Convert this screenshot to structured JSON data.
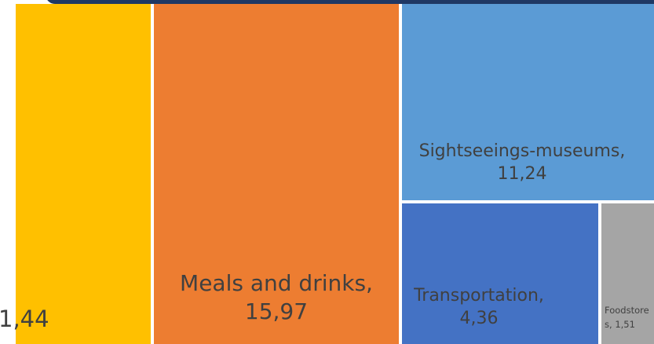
{
  "chart_data": {
    "type": "treemap",
    "categories": [
      null,
      "Meals and drinks,",
      "Sightseeings-museums,",
      "Transportation,",
      "Foodstores,"
    ],
    "values": [
      1.44,
      15.97,
      11.24,
      4.36,
      1.51
    ],
    "value_labels": [
      "1,44",
      "15,97",
      "11,24",
      "4,36",
      "1,51"
    ],
    "colors": [
      "#ffc000",
      "#ed7d31",
      "#5b9bd5",
      "#4472c4",
      "#a5a5a5"
    ]
  }
}
